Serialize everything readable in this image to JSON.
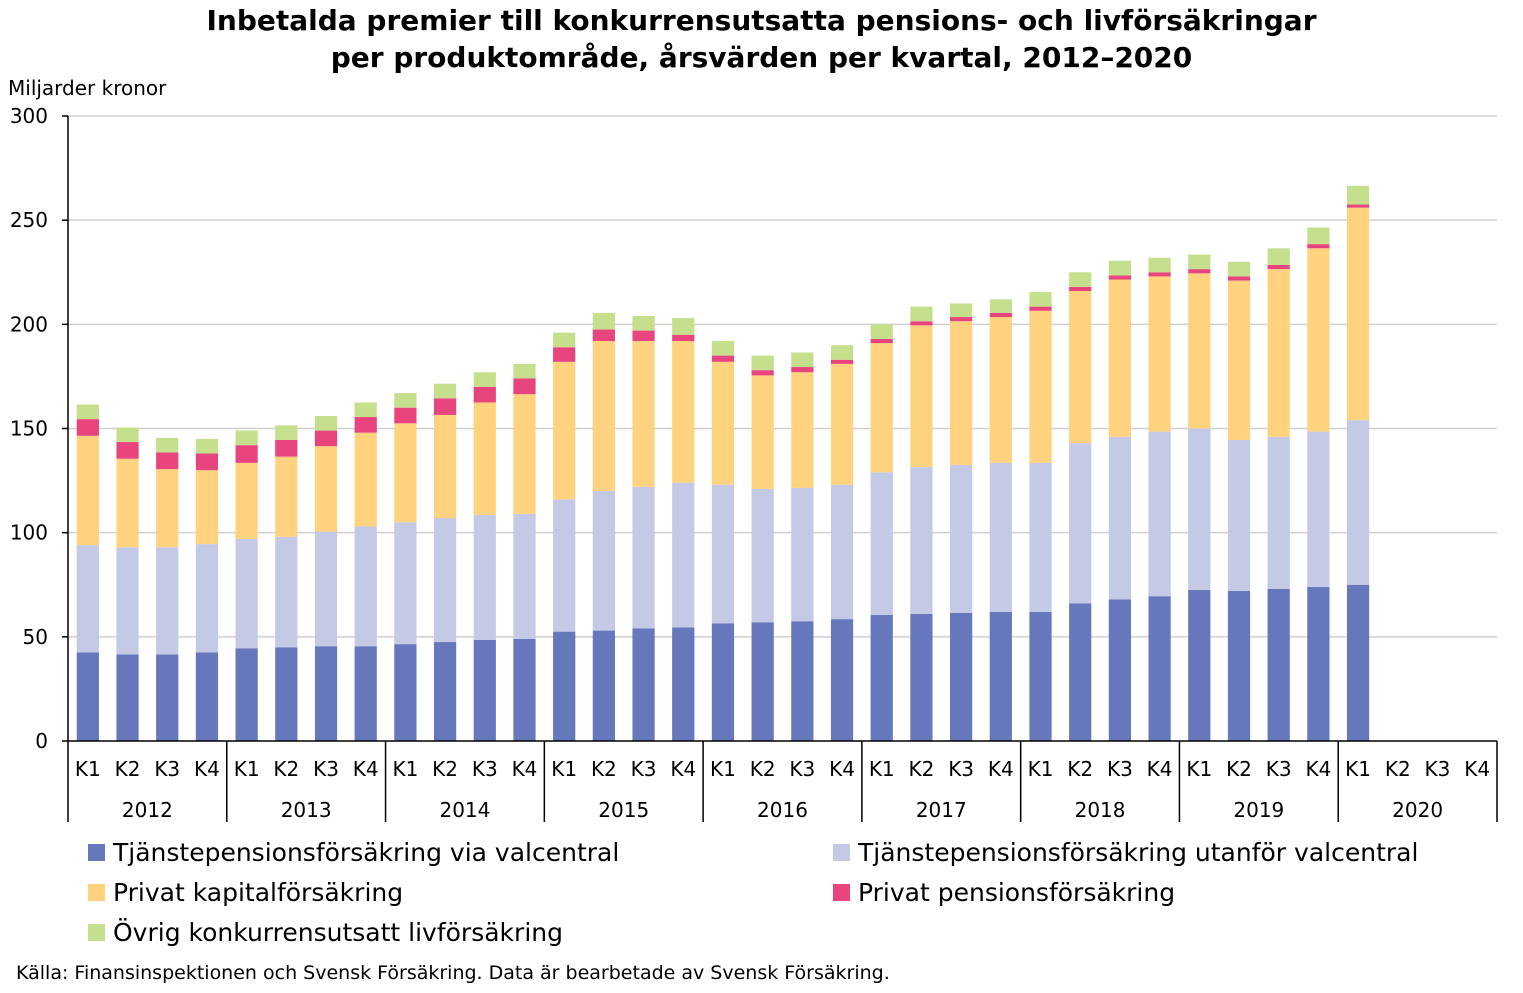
{
  "title": {
    "line1": "Inbetalda premier till konkurrensutsatta pensions- och livförsäkringar",
    "line2": "per produktområde, årsvärden per kvartal, 2012–2020"
  },
  "source": "Källa: Finansinspektionen och Svensk Försäkring. Data är bearbetade av Svensk Försäkring.",
  "chart_data": {
    "type": "bar",
    "stacked": true,
    "ylabel": "Miljarder kronor",
    "ylim": [
      0,
      300
    ],
    "yticks": [
      0,
      50,
      100,
      150,
      200,
      250,
      300
    ],
    "grid": true,
    "legend_position": "bottom",
    "quarters": [
      "K1",
      "K2",
      "K3",
      "K4"
    ],
    "years": [
      "2012",
      "2013",
      "2014",
      "2015",
      "2016",
      "2017",
      "2018",
      "2019",
      "2020"
    ],
    "categories": [
      "2012 K1",
      "2012 K2",
      "2012 K3",
      "2012 K4",
      "2013 K1",
      "2013 K2",
      "2013 K3",
      "2013 K4",
      "2014 K1",
      "2014 K2",
      "2014 K3",
      "2014 K4",
      "2015 K1",
      "2015 K2",
      "2015 K3",
      "2015 K4",
      "2016 K1",
      "2016 K2",
      "2016 K3",
      "2016 K4",
      "2017 K1",
      "2017 K2",
      "2017 K3",
      "2017 K4",
      "2018 K1",
      "2018 K2",
      "2018 K3",
      "2018 K4",
      "2019 K1",
      "2019 K2",
      "2019 K3",
      "2019 K4",
      "2020 K1",
      "2020 K2",
      "2020 K3",
      "2020 K4"
    ],
    "series": [
      {
        "name": "Tjänstepensionsförsäkring via valcentral",
        "color": "#6677bb",
        "values": [
          42.5,
          41.5,
          41.5,
          42.5,
          44.5,
          45,
          45.5,
          45.5,
          46.5,
          47.5,
          48.5,
          49,
          52.5,
          53,
          54,
          54.5,
          56.5,
          57,
          57.5,
          58.5,
          60.5,
          61,
          61.5,
          62,
          62,
          66,
          68,
          69.5,
          72.5,
          72,
          73,
          74,
          75,
          null,
          null,
          null
        ]
      },
      {
        "name": "Tjänstepensionsförsäkring utanför valcentral",
        "color": "#c4c9e6",
        "values": [
          51.5,
          51.5,
          51.5,
          52,
          52.5,
          53,
          55,
          57.5,
          58.5,
          59.5,
          60,
          60,
          63.5,
          67,
          68,
          69.5,
          66.5,
          64,
          64,
          64.5,
          68.5,
          70.5,
          71,
          71.5,
          71.5,
          77,
          78,
          79,
          77.5,
          72.5,
          73,
          74.5,
          79,
          null,
          null,
          null
        ]
      },
      {
        "name": "Privat kapitalförsäkring",
        "color": "#ffd27f",
        "values": [
          52.5,
          42.5,
          37.5,
          35.5,
          36.5,
          38.5,
          41,
          45,
          47.5,
          49.5,
          54,
          57.5,
          66,
          72,
          70,
          68,
          59,
          54.5,
          55.5,
          58,
          62,
          68,
          69,
          70,
          73,
          73,
          75.5,
          74.5,
          74.5,
          76.5,
          80.5,
          88,
          102,
          null,
          null,
          null
        ]
      },
      {
        "name": "Privat pensionsförsäkring",
        "color": "#e8457f",
        "values": [
          8,
          8,
          8,
          8,
          8.5,
          8,
          7.5,
          7.5,
          7.5,
          8,
          7.5,
          7.5,
          7,
          5.5,
          5,
          3,
          3,
          2.5,
          2.5,
          2,
          2,
          2,
          2,
          2,
          2,
          2,
          2,
          2,
          2,
          2,
          2,
          2,
          1.5,
          null,
          null,
          null
        ]
      },
      {
        "name": "Övrig konkurrensutsatt livförsäkring",
        "color": "#c6df8d",
        "values": [
          7,
          7,
          7,
          7,
          7,
          7,
          7,
          7,
          7,
          7,
          7,
          7,
          7,
          8,
          7,
          8,
          7,
          7,
          7,
          7,
          7,
          7,
          6.5,
          6.5,
          7,
          7,
          7,
          7,
          7,
          7,
          8,
          8,
          9,
          null,
          null,
          null
        ]
      }
    ]
  }
}
